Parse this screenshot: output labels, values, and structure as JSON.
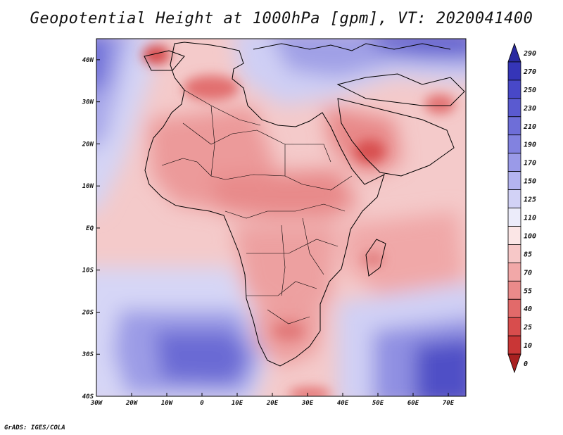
{
  "title": "Geopotential Height at 1000hPa [gpm], VT: 2020041400",
  "credit": "GrADS: IGES/COLA",
  "map": {
    "lat_ticks": [
      "40N",
      "30N",
      "20N",
      "10N",
      "EQ",
      "10S",
      "20S",
      "30S",
      "40S"
    ],
    "lon_ticks": [
      "30W",
      "20W",
      "10W",
      "0",
      "10E",
      "20E",
      "30E",
      "40E",
      "50E",
      "60E",
      "70E"
    ],
    "lat_range": [
      -40,
      45
    ],
    "lon_range": [
      -30,
      75
    ]
  },
  "colorbar": {
    "levels": [
      "290",
      "270",
      "250",
      "230",
      "210",
      "190",
      "170",
      "150",
      "125",
      "110",
      "100",
      "85",
      "70",
      "55",
      "40",
      "25",
      "10",
      "0"
    ],
    "colors": [
      "#2a2aa0",
      "#3535b8",
      "#4848c8",
      "#5a5ad0",
      "#6e6ed8",
      "#8282e0",
      "#9a9ae8",
      "#b4b4f0",
      "#d2d2f6",
      "#ececfa",
      "#fbe6e6",
      "#f7c8c8",
      "#f2a8a8",
      "#ea8a8a",
      "#e26a6a",
      "#d84d4d",
      "#c93636",
      "#a82020"
    ]
  }
}
